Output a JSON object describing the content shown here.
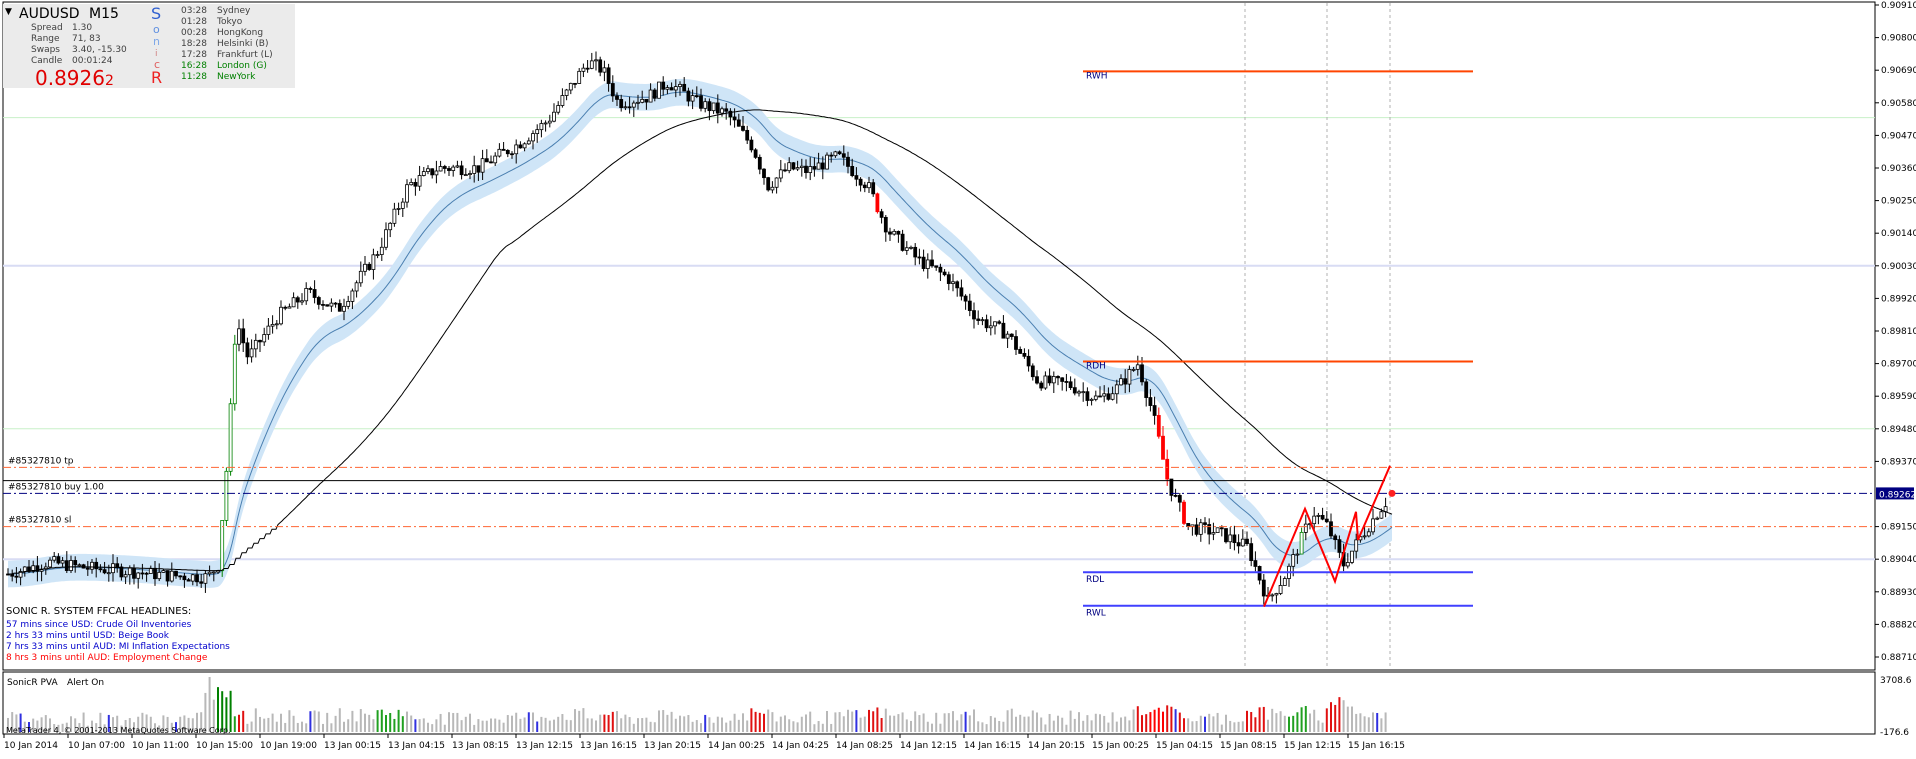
{
  "symbol": "AUDUSD",
  "timeframe": "M15",
  "info": {
    "spread_label": "Spread",
    "spread_value": "1.30",
    "range_label": "Range",
    "range_value": "71, 83",
    "swaps_label": "Swaps",
    "swaps_value": "3.40, -15.30",
    "candle_label": "Candle",
    "candle_value": "00:01:24",
    "price_main": "0.8926",
    "price_last": "2",
    "sonic_letters": [
      "S",
      "o",
      "n",
      "i",
      "c",
      "R"
    ],
    "sessions": [
      {
        "time": "03:28",
        "name": "Sydney"
      },
      {
        "time": "01:28",
        "name": "Tokyo"
      },
      {
        "time": "00:28",
        "name": "HongKong"
      },
      {
        "time": "18:28",
        "name": "Helsinki  (B)"
      },
      {
        "time": "17:28",
        "name": "Frankfurt  (L)"
      },
      {
        "time": "16:28",
        "name": "London  (G)"
      },
      {
        "time": "11:28",
        "name": "NewYork"
      }
    ]
  },
  "price_axis": {
    "labels": [
      "0.90910",
      "0.90800",
      "0.90690",
      "0.90580",
      "0.90470",
      "0.90360",
      "0.90250",
      "0.90140",
      "0.90030",
      "0.89920",
      "0.89810",
      "0.89700",
      "0.89590",
      "0.89480",
      "0.89370",
      "0.89262",
      "0.89150",
      "0.89040",
      "0.88930",
      "0.88820",
      "0.88710"
    ],
    "current_price": "0.89262"
  },
  "levels": [
    {
      "label": "RWH",
      "price": 0.90686
    },
    {
      "label": "RDH",
      "price": 0.89707
    },
    {
      "label": "RDL",
      "price": 0.88996
    },
    {
      "label": "RWL",
      "price": 0.88883
    }
  ],
  "order_lines": [
    {
      "label": "#85327810 tp",
      "price": 0.8935
    },
    {
      "label": "#85327810 buy 1.00",
      "price": 0.89262
    },
    {
      "label": "#85327810 sl",
      "price": 0.8915
    }
  ],
  "headlines": {
    "title": "SONIC R. SYSTEM  FFCAL HEADLINES:",
    "items": [
      "57 mins since USD: Crude Oil Inventories",
      "2 hrs 33 mins until USD: Beige Book",
      "7 hrs 33 mins until AUD: MI Inflation Expectations",
      "8 hrs 3 mins until AUD: Employment Change"
    ]
  },
  "indicator": {
    "name": "SonicR PVA",
    "alert": "Alert On",
    "axis_top": "3708.6",
    "axis_bottom": "-176.6"
  },
  "copyright": "MetaTrader 4, © 2001-2013 MetaQuotes Software Corp.",
  "time_axis": [
    "10 Jan 2014",
    "10 Jan 07:00",
    "10 Jan 11:00",
    "10 Jan 15:00",
    "10 Jan 19:00",
    "13 Jan 00:15",
    "13 Jan 04:15",
    "13 Jan 08:15",
    "13 Jan 12:15",
    "13 Jan 16:15",
    "13 Jan 20:15",
    "14 Jan 00:25",
    "14 Jan 04:25",
    "14 Jan 08:25",
    "14 Jan 12:15",
    "14 Jan 16:15",
    "14 Jan 20:15",
    "15 Jan 00:25",
    "15 Jan 04:15",
    "15 Jan 08:15",
    "15 Jan 12:15",
    "15 Jan 16:15"
  ],
  "colors": {
    "bull_candle": "#008000",
    "bear_candle": "#ff0000",
    "ema_band": "#cfe5f7",
    "ema_mid": "#4a7fb0",
    "sma": "#000000",
    "level_line": "#ff4500",
    "support_line": "#4040ff",
    "zigzag": "#ff0000",
    "order_tp_sl": "#ff6633",
    "order_entry": "#000080",
    "price_red": "#ff0000"
  }
}
